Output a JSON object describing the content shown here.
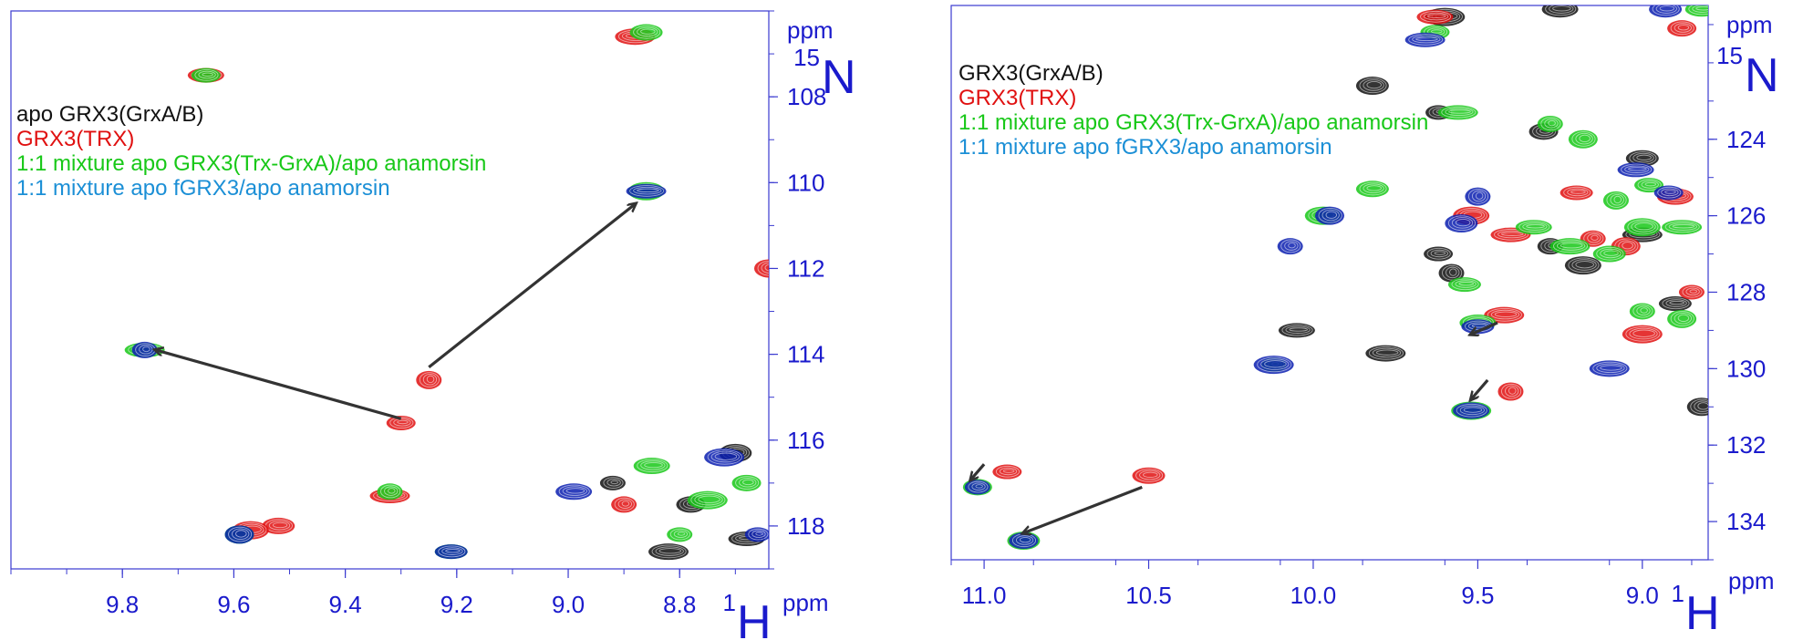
{
  "colors": {
    "axis": "#3a3ad0",
    "tick_text": "#1a1acc",
    "black": "#111111",
    "red": "#e01010",
    "green": "#18c818",
    "blue": "#0a1fb0",
    "cyan": "#1b8fd6",
    "arrow": "#333333"
  },
  "chart_data": [
    {
      "type": "scatter",
      "subtype": "2D NMR 1H-15N HSQC overlay",
      "x_axis": {
        "nucleus_sup": "1",
        "nucleus": "H",
        "unit": "ppm",
        "range": [
          10.0,
          8.64
        ],
        "reversed": true,
        "ticks": [
          "9.8",
          "9.6",
          "9.4",
          "9.2",
          "9.0",
          "8.8"
        ]
      },
      "y_axis": {
        "nucleus_sup": "15",
        "nucleus": "N",
        "unit": "ppm",
        "range": [
          106.0,
          119.0
        ],
        "reversed": true,
        "ticks": [
          "108",
          "110",
          "112",
          "114",
          "116",
          "118"
        ]
      },
      "legend": [
        {
          "label": "apo GRX3(GrxA/B)",
          "color": "black"
        },
        {
          "label": "GRX3(TRX)",
          "color": "red"
        },
        {
          "label": "1:1 mixture apo GRX3(Trx-GrxA)/apo anamorsin",
          "color": "green"
        },
        {
          "label": "1:1 mixture apo fGRX3/apo anamorsin",
          "color": "cyan"
        }
      ],
      "series": [
        {
          "name": "apo GRX3(GrxA/B)",
          "color": "black",
          "peaks": [
            [
              8.92,
              117.0
            ],
            [
              8.78,
              117.5
            ],
            [
              8.7,
              116.3
            ],
            [
              8.68,
              118.3
            ],
            [
              8.82,
              118.6
            ]
          ]
        },
        {
          "name": "GRX3(TRX)",
          "color": "red",
          "peaks": [
            [
              9.65,
              107.5
            ],
            [
              8.88,
              106.6
            ],
            [
              9.25,
              114.6
            ],
            [
              9.3,
              115.6
            ],
            [
              9.52,
              118.0
            ],
            [
              9.57,
              118.1
            ],
            [
              9.32,
              117.3
            ],
            [
              8.9,
              117.5
            ],
            [
              8.64,
              112.0
            ]
          ]
        },
        {
          "name": "1:1 mixture apo GRX3(Trx-GrxA)/apo anamorsin",
          "color": "green",
          "peaks": [
            [
              9.65,
              107.5
            ],
            [
              8.86,
              106.5
            ],
            [
              8.86,
              110.2
            ],
            [
              9.76,
              113.9
            ],
            [
              9.32,
              117.2
            ],
            [
              9.59,
              118.2
            ],
            [
              9.21,
              118.6
            ],
            [
              8.85,
              116.6
            ],
            [
              8.75,
              117.4
            ],
            [
              8.8,
              118.2
            ],
            [
              8.68,
              117.0
            ]
          ]
        },
        {
          "name": "1:1 mixture apo fGRX3/apo anamorsin",
          "color": "blue",
          "peaks": [
            [
              8.86,
              110.2
            ],
            [
              9.76,
              113.9
            ],
            [
              9.59,
              118.2
            ],
            [
              9.21,
              118.6
            ],
            [
              8.99,
              117.2
            ],
            [
              8.72,
              116.4
            ],
            [
              8.66,
              118.2
            ]
          ]
        }
      ],
      "arrows": [
        {
          "from": [
            9.3,
            115.5
          ],
          "to": [
            9.74,
            113.9
          ]
        },
        {
          "from": [
            9.25,
            114.3
          ],
          "to": [
            8.88,
            110.5
          ]
        }
      ]
    },
    {
      "type": "scatter",
      "subtype": "2D NMR 1H-15N HSQC overlay",
      "x_axis": {
        "nucleus_sup": "1",
        "nucleus": "H",
        "unit": "ppm",
        "range": [
          11.1,
          8.8
        ],
        "reversed": true,
        "ticks": [
          "11.0",
          "10.5",
          "10.0",
          "9.5",
          "9.0"
        ]
      },
      "y_axis": {
        "nucleus_sup": "15",
        "nucleus": "N",
        "unit": "ppm",
        "range": [
          120.5,
          135.0
        ],
        "reversed": true,
        "ticks": [
          "124",
          "126",
          "128",
          "130",
          "132",
          "134"
        ]
      },
      "legend": [
        {
          "label": "GRX3(GrxA/B)",
          "color": "black"
        },
        {
          "label": "GRX3(TRX)",
          "color": "red"
        },
        {
          "label": "1:1 mixture apo GRX3(Trx-GrxA)/apo anamorsin",
          "color": "green"
        },
        {
          "label": "1:1 mixture apo fGRX3/apo anamorsin",
          "color": "cyan"
        }
      ],
      "series": [
        {
          "name": "GRX3(GrxA/B)",
          "color": "black",
          "peaks": [
            [
              9.62,
              123.3
            ],
            [
              9.3,
              123.8
            ],
            [
              9.82,
              122.6
            ],
            [
              10.05,
              129.0
            ],
            [
              9.78,
              129.6
            ],
            [
              9.58,
              127.5
            ],
            [
              9.62,
              127.0
            ],
            [
              9.0,
              124.5
            ],
            [
              9.18,
              127.3
            ],
            [
              9.0,
              126.5
            ],
            [
              9.28,
              126.8
            ],
            [
              8.82,
              131.0
            ],
            [
              8.9,
              128.3
            ],
            [
              9.25,
              120.6
            ],
            [
              9.6,
              120.8
            ]
          ]
        },
        {
          "name": "GRX3(TRX)",
          "color": "red",
          "peaks": [
            [
              9.63,
              120.8
            ],
            [
              9.42,
              128.6
            ],
            [
              9.4,
              130.6
            ],
            [
              10.93,
              132.7
            ],
            [
              10.5,
              132.8
            ],
            [
              9.52,
              126.0
            ],
            [
              9.4,
              126.5
            ],
            [
              9.15,
              126.6
            ],
            [
              9.05,
              126.8
            ],
            [
              9.2,
              125.4
            ],
            [
              8.9,
              125.5
            ],
            [
              9.0,
              129.1
            ],
            [
              8.85,
              128.0
            ],
            [
              8.88,
              121.1
            ]
          ]
        },
        {
          "name": "1:1 mixture apo GRX3(Trx-GrxA)/apo anamorsin",
          "color": "green",
          "peaks": [
            [
              9.63,
              121.2
            ],
            [
              9.82,
              125.3
            ],
            [
              9.97,
              126.0
            ],
            [
              9.56,
              123.3
            ],
            [
              9.28,
              123.6
            ],
            [
              9.18,
              124.0
            ],
            [
              9.54,
              127.8
            ],
            [
              9.5,
              128.8
            ],
            [
              9.52,
              131.1
            ],
            [
              10.12,
              129.9
            ],
            [
              11.02,
              133.1
            ],
            [
              10.88,
              134.5
            ],
            [
              9.33,
              126.3
            ],
            [
              9.22,
              126.8
            ],
            [
              9.08,
              125.6
            ],
            [
              8.98,
              125.2
            ],
            [
              9.1,
              127.0
            ],
            [
              9.0,
              126.3
            ],
            [
              8.88,
              126.3
            ],
            [
              9.0,
              128.5
            ],
            [
              8.88,
              128.7
            ],
            [
              8.82,
              120.6
            ]
          ]
        },
        {
          "name": "1:1 mixture apo fGRX3/apo anamorsin",
          "color": "blue",
          "peaks": [
            [
              9.66,
              121.4
            ],
            [
              10.07,
              126.8
            ],
            [
              9.95,
              126.0
            ],
            [
              9.5,
              128.9
            ],
            [
              9.52,
              131.1
            ],
            [
              10.12,
              129.9
            ],
            [
              11.02,
              133.1
            ],
            [
              10.88,
              134.5
            ],
            [
              9.55,
              126.2
            ],
            [
              9.02,
              124.8
            ],
            [
              9.1,
              130.0
            ],
            [
              9.5,
              125.5
            ],
            [
              8.92,
              125.4
            ],
            [
              8.93,
              120.6
            ]
          ]
        }
      ],
      "arrows": [
        {
          "from": [
            10.52,
            133.1
          ],
          "to": [
            10.88,
            134.3
          ]
        },
        {
          "from": [
            11.0,
            132.5
          ],
          "to": [
            11.04,
            132.9
          ]
        },
        {
          "from": [
            9.44,
            128.8
          ],
          "to": [
            9.52,
            129.1
          ]
        },
        {
          "from": [
            9.47,
            130.3
          ],
          "to": [
            9.52,
            130.8
          ]
        }
      ]
    }
  ]
}
